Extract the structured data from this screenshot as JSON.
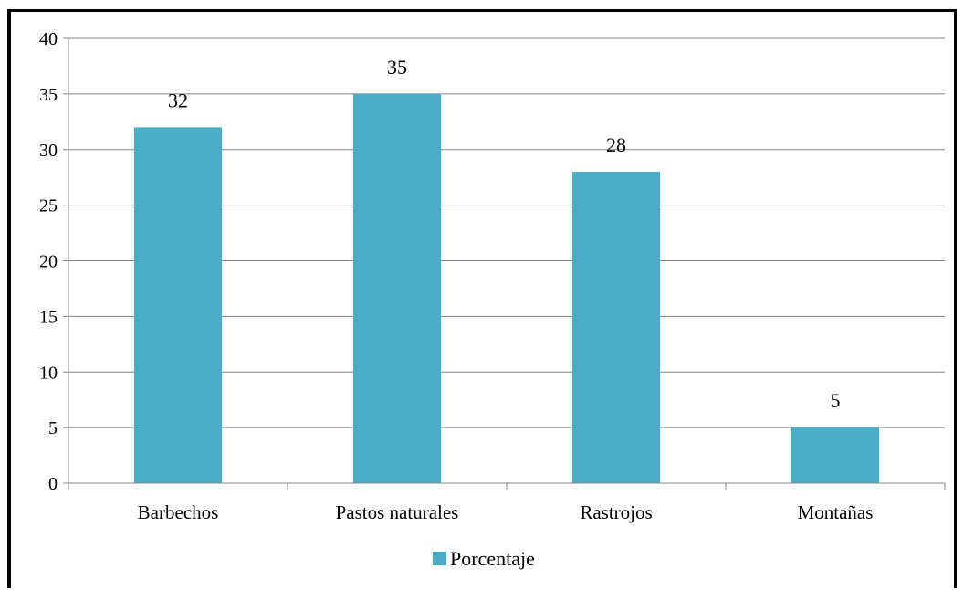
{
  "chart_data": {
    "type": "bar",
    "categories": [
      "Barbechos",
      "Pastos naturales",
      "Rastrojos",
      "Montañas"
    ],
    "series": [
      {
        "name": "Porcentaje",
        "values": [
          32,
          35,
          28,
          5
        ],
        "data_labels": [
          "32",
          "35",
          "28",
          "5"
        ]
      }
    ],
    "ylim": [
      0,
      40
    ],
    "y_ticks": [
      0,
      5,
      10,
      15,
      20,
      25,
      30,
      35,
      40
    ],
    "grid": true,
    "legend": "bottom",
    "colors": {
      "bar": "#4BACC6",
      "grid": "#868686",
      "axis": "#868686"
    }
  }
}
